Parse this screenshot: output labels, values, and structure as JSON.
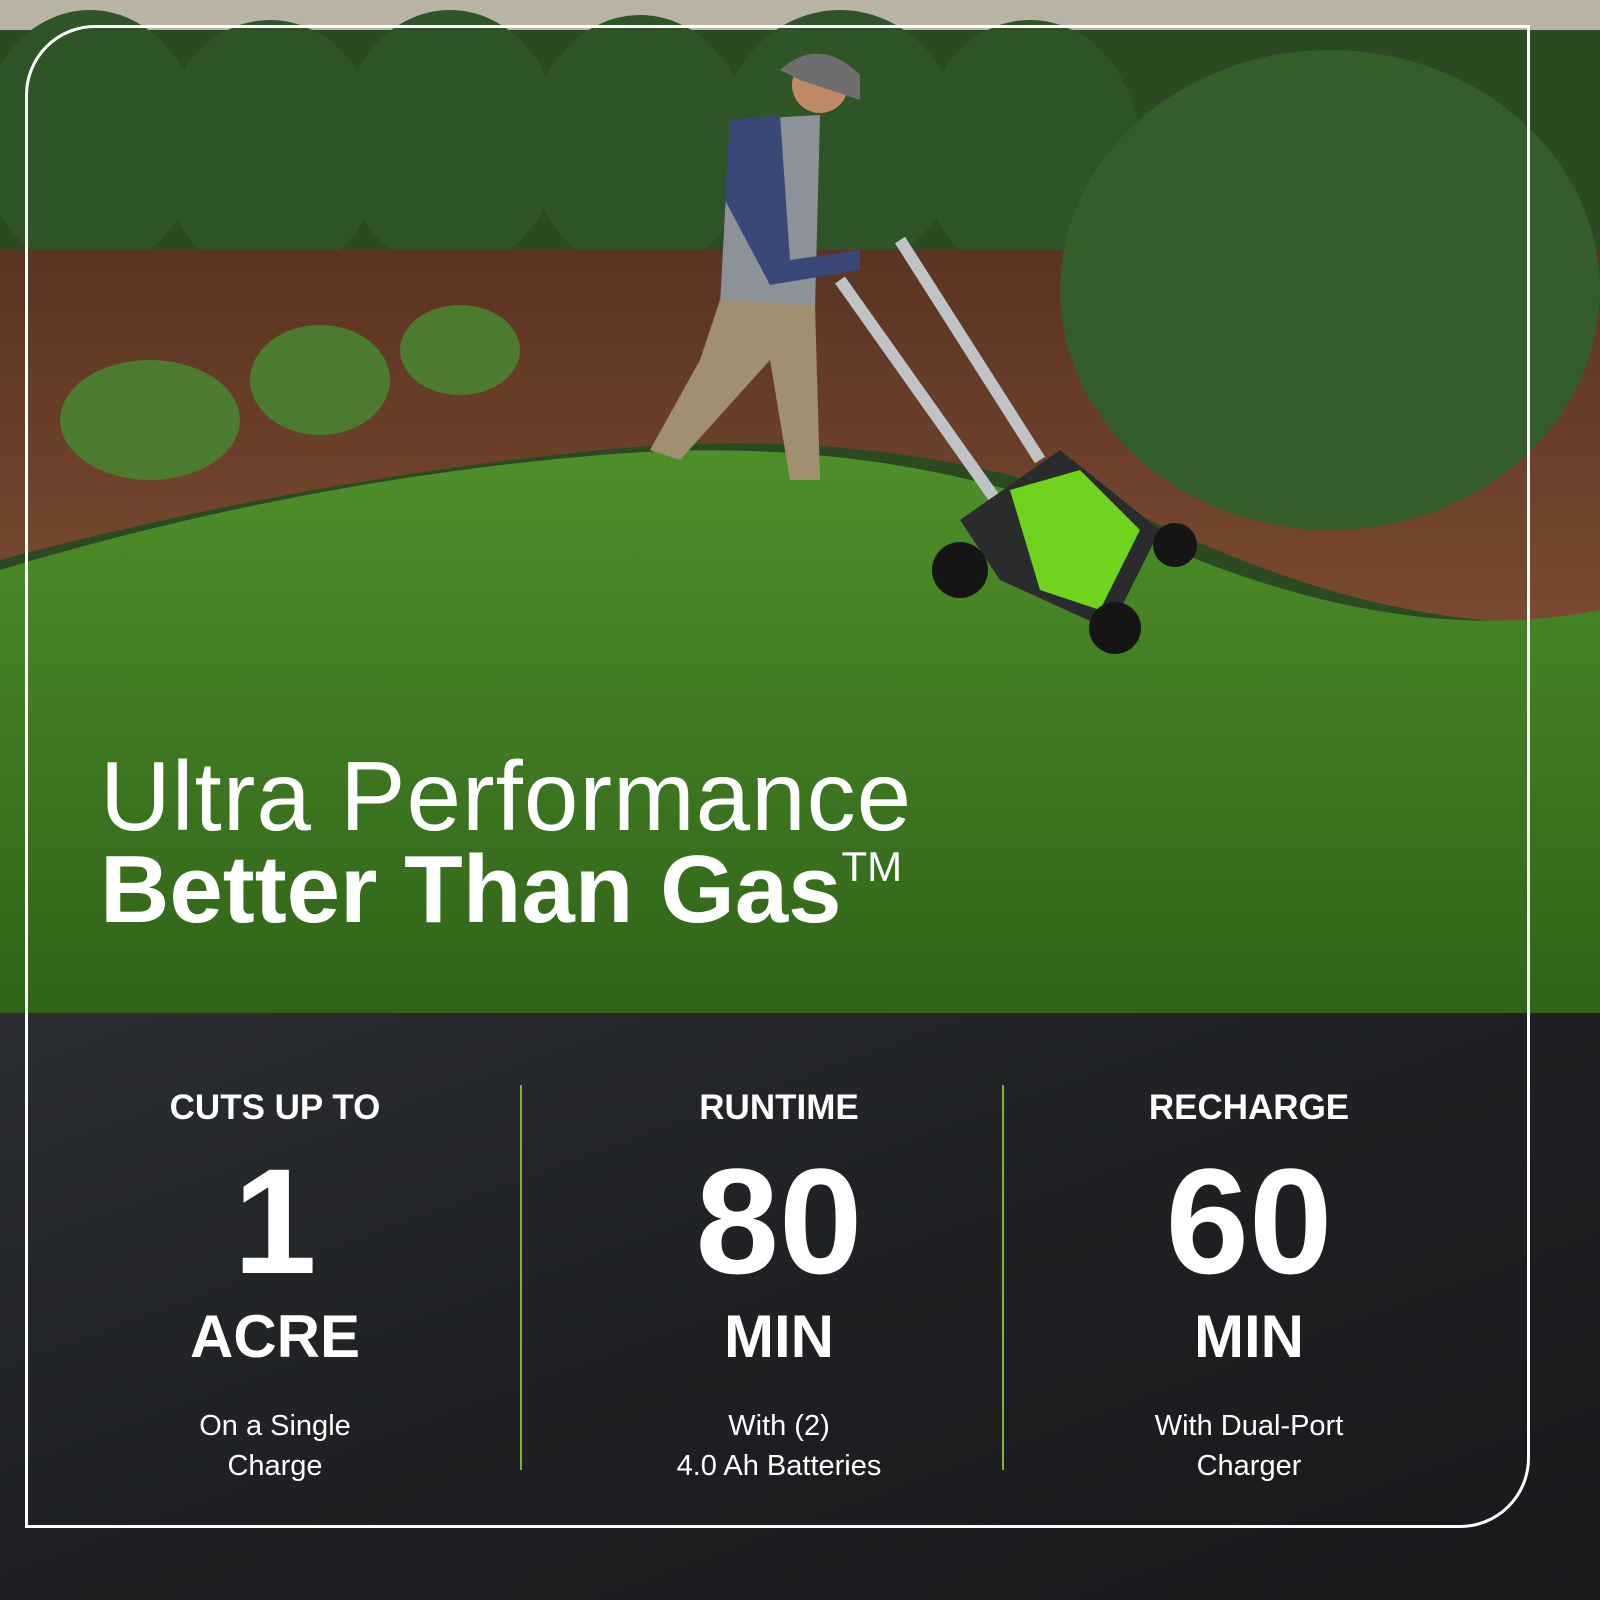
{
  "headline": {
    "line1": "Ultra Performance",
    "line2": "Better Than Gas",
    "trademark": "TM"
  },
  "stats": [
    {
      "label": "CUTS UP TO",
      "value": "1",
      "unit": "ACRE",
      "note_line1": "On a Single",
      "note_line2": "Charge"
    },
    {
      "label": "RUNTIME",
      "value": "80",
      "unit": "MIN",
      "note_line1": "With (2)",
      "note_line2": "4.0 Ah Batteries"
    },
    {
      "label": "RECHARGE",
      "value": "60",
      "unit": "MIN",
      "note_line1": "With Dual-Port",
      "note_line2": "Charger"
    }
  ],
  "colors": {
    "accent": "#7fc31c",
    "panel": "#1e2023",
    "grass": "#3f7d1f",
    "text": "#ffffff"
  }
}
